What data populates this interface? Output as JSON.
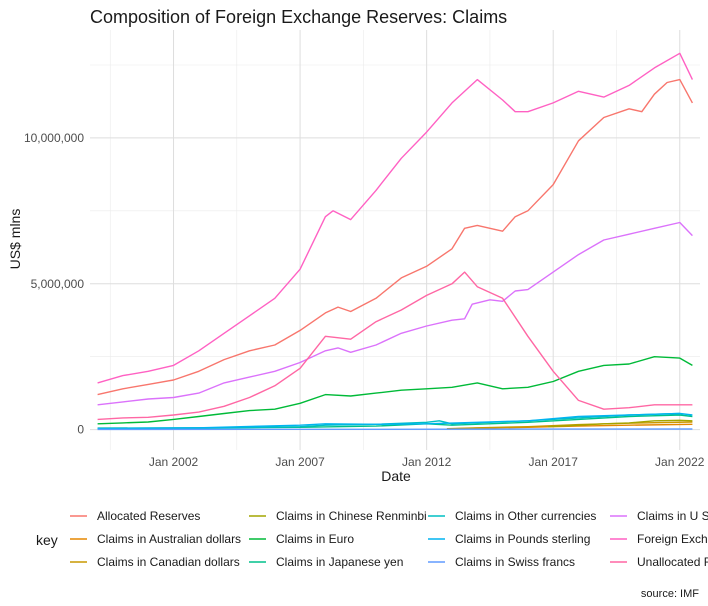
{
  "chart_data": {
    "type": "line",
    "title": "Composition of Foreign Exchange Reserves: Claims",
    "xlabel": "Date",
    "ylabel": "US$ mlns",
    "caption": "source: IMF",
    "legend_title": "key",
    "legend_position": "bottom",
    "grid": true,
    "x_range": [
      1998.7,
      2022.8
    ],
    "ylim": [
      -700000,
      13700000
    ],
    "x_ticks": [
      {
        "x": 2002,
        "label": "Jan 2002"
      },
      {
        "x": 2007,
        "label": "Jan 2007"
      },
      {
        "x": 2012,
        "label": "Jan 2012"
      },
      {
        "x": 2017,
        "label": "Jan 2017"
      },
      {
        "x": 2022,
        "label": "Jan 2022"
      }
    ],
    "y_ticks": [
      {
        "y": 0,
        "label": "0"
      },
      {
        "y": 5000000,
        "label": "5,000,000"
      },
      {
        "y": 10000000,
        "label": "10,000,000"
      }
    ],
    "series": [
      {
        "name": "Allocated Reserves",
        "color": "#F8766D",
        "points": [
          [
            1999.0,
            1200000
          ],
          [
            2000.0,
            1400000
          ],
          [
            2001.0,
            1550000
          ],
          [
            2002.0,
            1700000
          ],
          [
            2003.0,
            2000000
          ],
          [
            2004.0,
            2400000
          ],
          [
            2005.0,
            2700000
          ],
          [
            2006.0,
            2900000
          ],
          [
            2007.0,
            3400000
          ],
          [
            2008.0,
            4000000
          ],
          [
            2008.5,
            4200000
          ],
          [
            2009.0,
            4050000
          ],
          [
            2010.0,
            4500000
          ],
          [
            2011.0,
            5200000
          ],
          [
            2012.0,
            5600000
          ],
          [
            2013.0,
            6200000
          ],
          [
            2013.5,
            6900000
          ],
          [
            2014.0,
            7000000
          ],
          [
            2015.0,
            6800000
          ],
          [
            2015.5,
            7300000
          ],
          [
            2016.0,
            7500000
          ],
          [
            2017.0,
            8400000
          ],
          [
            2018.0,
            9900000
          ],
          [
            2019.0,
            10700000
          ],
          [
            2020.0,
            11000000
          ],
          [
            2020.5,
            10900000
          ],
          [
            2021.0,
            11500000
          ],
          [
            2021.5,
            11900000
          ],
          [
            2022.0,
            12000000
          ],
          [
            2022.5,
            11200000
          ]
        ]
      },
      {
        "name": "Claims in Australian dollars",
        "color": "#E58700",
        "points": [
          [
            2012.8,
            20000
          ],
          [
            2014.0,
            50000
          ],
          [
            2016.0,
            80000
          ],
          [
            2018.0,
            120000
          ],
          [
            2020.0,
            150000
          ],
          [
            2022.5,
            180000
          ]
        ]
      },
      {
        "name": "Claims in Canadian dollars",
        "color": "#C99800",
        "points": [
          [
            2012.8,
            30000
          ],
          [
            2014.0,
            60000
          ],
          [
            2016.0,
            100000
          ],
          [
            2018.0,
            170000
          ],
          [
            2020.0,
            220000
          ],
          [
            2022.5,
            260000
          ]
        ]
      },
      {
        "name": "Claims in Chinese Renminbi",
        "color": "#A3A500",
        "points": [
          [
            2016.8,
            100000
          ],
          [
            2018.0,
            150000
          ],
          [
            2019.0,
            200000
          ],
          [
            2020.0,
            230000
          ],
          [
            2021.0,
            300000
          ],
          [
            2022.0,
            320000
          ],
          [
            2022.5,
            300000
          ]
        ]
      },
      {
        "name": "Claims in Euro",
        "color": "#00BA38",
        "points": [
          [
            1999.0,
            200000
          ],
          [
            2000.0,
            230000
          ],
          [
            2001.0,
            260000
          ],
          [
            2002.0,
            350000
          ],
          [
            2003.0,
            450000
          ],
          [
            2004.0,
            550000
          ],
          [
            2005.0,
            650000
          ],
          [
            2006.0,
            700000
          ],
          [
            2007.0,
            900000
          ],
          [
            2008.0,
            1200000
          ],
          [
            2009.0,
            1150000
          ],
          [
            2010.0,
            1250000
          ],
          [
            2011.0,
            1350000
          ],
          [
            2012.0,
            1400000
          ],
          [
            2013.0,
            1450000
          ],
          [
            2014.0,
            1600000
          ],
          [
            2015.0,
            1400000
          ],
          [
            2016.0,
            1450000
          ],
          [
            2017.0,
            1650000
          ],
          [
            2018.0,
            2000000
          ],
          [
            2019.0,
            2200000
          ],
          [
            2020.0,
            2250000
          ],
          [
            2021.0,
            2500000
          ],
          [
            2022.0,
            2450000
          ],
          [
            2022.5,
            2200000
          ]
        ]
      },
      {
        "name": "Claims in Japanese yen",
        "color": "#00C08B",
        "points": [
          [
            1999.0,
            50000
          ],
          [
            2003.0,
            60000
          ],
          [
            2007.0,
            80000
          ],
          [
            2010.0,
            120000
          ],
          [
            2012.0,
            200000
          ],
          [
            2013.0,
            150000
          ],
          [
            2016.0,
            250000
          ],
          [
            2018.0,
            350000
          ],
          [
            2020.0,
            450000
          ],
          [
            2022.0,
            500000
          ],
          [
            2022.5,
            450000
          ]
        ]
      },
      {
        "name": "Claims in Other currencies",
        "color": "#00BFC4",
        "points": [
          [
            1999.0,
            30000
          ],
          [
            2003.0,
            40000
          ],
          [
            2007.0,
            100000
          ],
          [
            2008.0,
            150000
          ],
          [
            2010.0,
            180000
          ],
          [
            2012.0,
            250000
          ],
          [
            2012.5,
            300000
          ],
          [
            2013.0,
            200000
          ],
          [
            2016.0,
            300000
          ],
          [
            2018.0,
            400000
          ],
          [
            2020.0,
            500000
          ],
          [
            2022.0,
            550000
          ]
        ]
      },
      {
        "name": "Claims in Pounds sterling",
        "color": "#00B4F0",
        "points": [
          [
            1999.0,
            40000
          ],
          [
            2003.0,
            60000
          ],
          [
            2007.0,
            150000
          ],
          [
            2008.0,
            200000
          ],
          [
            2010.0,
            180000
          ],
          [
            2012.0,
            200000
          ],
          [
            2014.0,
            250000
          ],
          [
            2016.0,
            300000
          ],
          [
            2018.0,
            450000
          ],
          [
            2020.0,
            500000
          ],
          [
            2022.0,
            550000
          ],
          [
            2022.5,
            500000
          ]
        ]
      },
      {
        "name": "Claims in Swiss francs",
        "color": "#619CFF",
        "points": [
          [
            1999.0,
            5000
          ],
          [
            2010.0,
            10000
          ],
          [
            2016.0,
            15000
          ],
          [
            2022.5,
            20000
          ]
        ]
      },
      {
        "name": "Claims in U S dollars",
        "color": "#DB72FB",
        "points": [
          [
            1999.0,
            850000
          ],
          [
            2000.0,
            950000
          ],
          [
            2001.0,
            1050000
          ],
          [
            2002.0,
            1100000
          ],
          [
            2003.0,
            1250000
          ],
          [
            2004.0,
            1600000
          ],
          [
            2005.0,
            1800000
          ],
          [
            2006.0,
            2000000
          ],
          [
            2007.0,
            2300000
          ],
          [
            2008.0,
            2700000
          ],
          [
            2008.5,
            2800000
          ],
          [
            2009.0,
            2650000
          ],
          [
            2010.0,
            2900000
          ],
          [
            2011.0,
            3300000
          ],
          [
            2012.0,
            3550000
          ],
          [
            2013.0,
            3750000
          ],
          [
            2013.5,
            3800000
          ],
          [
            2013.8,
            4300000
          ],
          [
            2014.5,
            4450000
          ],
          [
            2015.0,
            4400000
          ],
          [
            2015.5,
            4750000
          ],
          [
            2016.0,
            4800000
          ],
          [
            2017.0,
            5400000
          ],
          [
            2018.0,
            6000000
          ],
          [
            2019.0,
            6500000
          ],
          [
            2020.0,
            6700000
          ],
          [
            2021.0,
            6900000
          ],
          [
            2022.0,
            7100000
          ],
          [
            2022.5,
            6650000
          ]
        ]
      },
      {
        "name": "Foreign Exchange Reserves",
        "color": "#FF61C3",
        "points": [
          [
            1999.0,
            1600000
          ],
          [
            2000.0,
            1850000
          ],
          [
            2001.0,
            2000000
          ],
          [
            2002.0,
            2200000
          ],
          [
            2003.0,
            2700000
          ],
          [
            2004.0,
            3300000
          ],
          [
            2005.0,
            3900000
          ],
          [
            2006.0,
            4500000
          ],
          [
            2007.0,
            5500000
          ],
          [
            2008.0,
            7300000
          ],
          [
            2008.3,
            7500000
          ],
          [
            2009.0,
            7200000
          ],
          [
            2010.0,
            8200000
          ],
          [
            2011.0,
            9300000
          ],
          [
            2012.0,
            10200000
          ],
          [
            2013.0,
            11200000
          ],
          [
            2014.0,
            12000000
          ],
          [
            2015.0,
            11300000
          ],
          [
            2015.5,
            10900000
          ],
          [
            2016.0,
            10900000
          ],
          [
            2017.0,
            11200000
          ],
          [
            2018.0,
            11600000
          ],
          [
            2019.0,
            11400000
          ],
          [
            2020.0,
            11800000
          ],
          [
            2021.0,
            12400000
          ],
          [
            2022.0,
            12900000
          ],
          [
            2022.5,
            12000000
          ]
        ]
      },
      {
        "name": "Unallocated Reserves",
        "color": "#FF67A4",
        "points": [
          [
            1999.0,
            350000
          ],
          [
            2000.0,
            400000
          ],
          [
            2001.0,
            420000
          ],
          [
            2002.0,
            500000
          ],
          [
            2003.0,
            600000
          ],
          [
            2004.0,
            800000
          ],
          [
            2005.0,
            1100000
          ],
          [
            2006.0,
            1500000
          ],
          [
            2007.0,
            2100000
          ],
          [
            2008.0,
            3200000
          ],
          [
            2009.0,
            3100000
          ],
          [
            2010.0,
            3700000
          ],
          [
            2011.0,
            4100000
          ],
          [
            2012.0,
            4600000
          ],
          [
            2013.0,
            5000000
          ],
          [
            2013.5,
            5400000
          ],
          [
            2014.0,
            4900000
          ],
          [
            2015.0,
            4500000
          ],
          [
            2016.0,
            3200000
          ],
          [
            2017.0,
            2000000
          ],
          [
            2018.0,
            1000000
          ],
          [
            2019.0,
            700000
          ],
          [
            2020.0,
            750000
          ],
          [
            2021.0,
            850000
          ],
          [
            2022.5,
            850000
          ]
        ]
      }
    ]
  }
}
